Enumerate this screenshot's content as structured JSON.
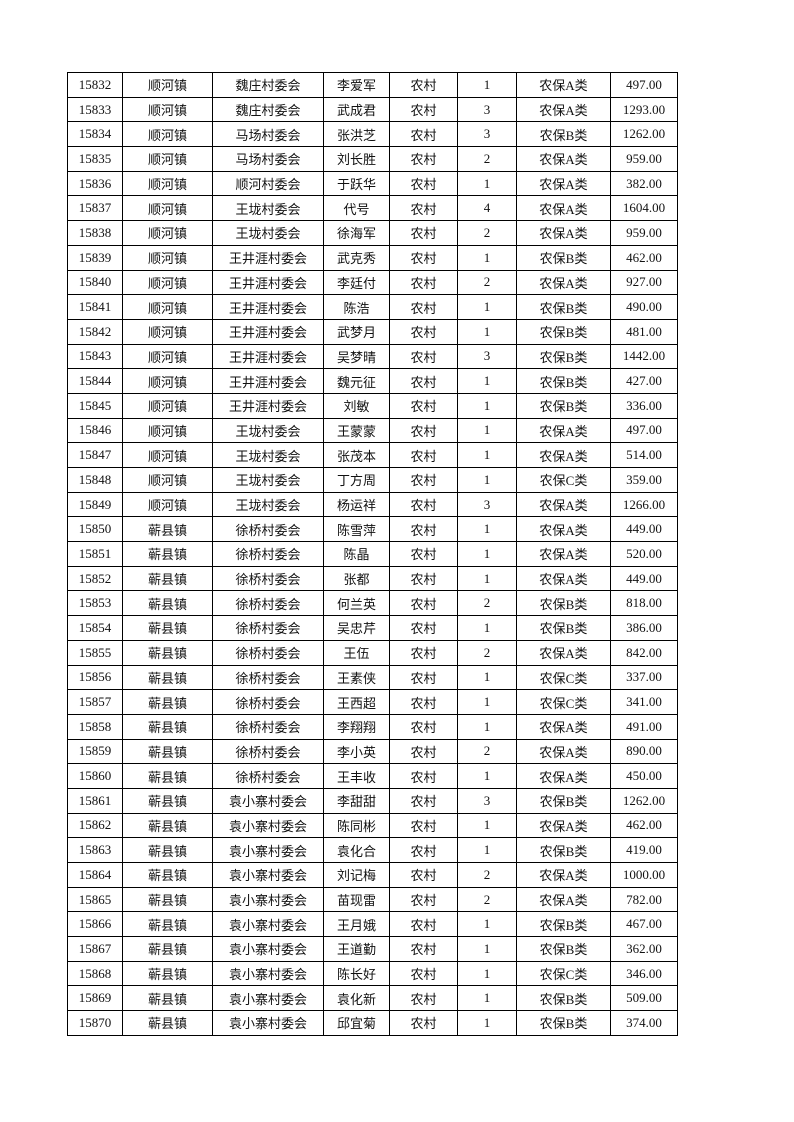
{
  "table": {
    "rows": [
      [
        "15832",
        "顺河镇",
        "魏庄村委会",
        "李爱军",
        "农村",
        "1",
        "农保A类",
        "497.00"
      ],
      [
        "15833",
        "顺河镇",
        "魏庄村委会",
        "武成君",
        "农村",
        "3",
        "农保A类",
        "1293.00"
      ],
      [
        "15834",
        "顺河镇",
        "马场村委会",
        "张洪芝",
        "农村",
        "3",
        "农保B类",
        "1262.00"
      ],
      [
        "15835",
        "顺河镇",
        "马场村委会",
        "刘长胜",
        "农村",
        "2",
        "农保A类",
        "959.00"
      ],
      [
        "15836",
        "顺河镇",
        "顺河村委会",
        "于跃华",
        "农村",
        "1",
        "农保A类",
        "382.00"
      ],
      [
        "15837",
        "顺河镇",
        "王垅村委会",
        "代号",
        "农村",
        "4",
        "农保A类",
        "1604.00"
      ],
      [
        "15838",
        "顺河镇",
        "王垅村委会",
        "徐海军",
        "农村",
        "2",
        "农保A类",
        "959.00"
      ],
      [
        "15839",
        "顺河镇",
        "王井涯村委会",
        "武克秀",
        "农村",
        "1",
        "农保B类",
        "462.00"
      ],
      [
        "15840",
        "顺河镇",
        "王井涯村委会",
        "李廷付",
        "农村",
        "2",
        "农保A类",
        "927.00"
      ],
      [
        "15841",
        "顺河镇",
        "王井涯村委会",
        "陈浩",
        "农村",
        "1",
        "农保B类",
        "490.00"
      ],
      [
        "15842",
        "顺河镇",
        "王井涯村委会",
        "武梦月",
        "农村",
        "1",
        "农保B类",
        "481.00"
      ],
      [
        "15843",
        "顺河镇",
        "王井涯村委会",
        "吴梦晴",
        "农村",
        "3",
        "农保B类",
        "1442.00"
      ],
      [
        "15844",
        "顺河镇",
        "王井涯村委会",
        "魏元征",
        "农村",
        "1",
        "农保B类",
        "427.00"
      ],
      [
        "15845",
        "顺河镇",
        "王井涯村委会",
        "刘敏",
        "农村",
        "1",
        "农保B类",
        "336.00"
      ],
      [
        "15846",
        "顺河镇",
        "王垅村委会",
        "王蒙蒙",
        "农村",
        "1",
        "农保A类",
        "497.00"
      ],
      [
        "15847",
        "顺河镇",
        "王垅村委会",
        "张茂本",
        "农村",
        "1",
        "农保A类",
        "514.00"
      ],
      [
        "15848",
        "顺河镇",
        "王垅村委会",
        "丁方周",
        "农村",
        "1",
        "农保C类",
        "359.00"
      ],
      [
        "15849",
        "顺河镇",
        "王垅村委会",
        "杨运祥",
        "农村",
        "3",
        "农保A类",
        "1266.00"
      ],
      [
        "15850",
        "蕲县镇",
        "徐桥村委会",
        "陈雪萍",
        "农村",
        "1",
        "农保A类",
        "449.00"
      ],
      [
        "15851",
        "蕲县镇",
        "徐桥村委会",
        "陈晶",
        "农村",
        "1",
        "农保A类",
        "520.00"
      ],
      [
        "15852",
        "蕲县镇",
        "徐桥村委会",
        "张都",
        "农村",
        "1",
        "农保A类",
        "449.00"
      ],
      [
        "15853",
        "蕲县镇",
        "徐桥村委会",
        "何兰英",
        "农村",
        "2",
        "农保B类",
        "818.00"
      ],
      [
        "15854",
        "蕲县镇",
        "徐桥村委会",
        "吴忠芹",
        "农村",
        "1",
        "农保B类",
        "386.00"
      ],
      [
        "15855",
        "蕲县镇",
        "徐桥村委会",
        "王伍",
        "农村",
        "2",
        "农保A类",
        "842.00"
      ],
      [
        "15856",
        "蕲县镇",
        "徐桥村委会",
        "王素侠",
        "农村",
        "1",
        "农保C类",
        "337.00"
      ],
      [
        "15857",
        "蕲县镇",
        "徐桥村委会",
        "王西超",
        "农村",
        "1",
        "农保C类",
        "341.00"
      ],
      [
        "15858",
        "蕲县镇",
        "徐桥村委会",
        "李翔翔",
        "农村",
        "1",
        "农保A类",
        "491.00"
      ],
      [
        "15859",
        "蕲县镇",
        "徐桥村委会",
        "李小英",
        "农村",
        "2",
        "农保A类",
        "890.00"
      ],
      [
        "15860",
        "蕲县镇",
        "徐桥村委会",
        "王丰收",
        "农村",
        "1",
        "农保A类",
        "450.00"
      ],
      [
        "15861",
        "蕲县镇",
        "袁小寨村委会",
        "李甜甜",
        "农村",
        "3",
        "农保B类",
        "1262.00"
      ],
      [
        "15862",
        "蕲县镇",
        "袁小寨村委会",
        "陈同彬",
        "农村",
        "1",
        "农保A类",
        "462.00"
      ],
      [
        "15863",
        "蕲县镇",
        "袁小寨村委会",
        "袁化合",
        "农村",
        "1",
        "农保B类",
        "419.00"
      ],
      [
        "15864",
        "蕲县镇",
        "袁小寨村委会",
        "刘记梅",
        "农村",
        "2",
        "农保A类",
        "1000.00"
      ],
      [
        "15865",
        "蕲县镇",
        "袁小寨村委会",
        "苗现雷",
        "农村",
        "2",
        "农保A类",
        "782.00"
      ],
      [
        "15866",
        "蕲县镇",
        "袁小寨村委会",
        "王月娥",
        "农村",
        "1",
        "农保B类",
        "467.00"
      ],
      [
        "15867",
        "蕲县镇",
        "袁小寨村委会",
        "王道勤",
        "农村",
        "1",
        "农保B类",
        "362.00"
      ],
      [
        "15868",
        "蕲县镇",
        "袁小寨村委会",
        "陈长好",
        "农村",
        "1",
        "农保C类",
        "346.00"
      ],
      [
        "15869",
        "蕲县镇",
        "袁小寨村委会",
        "袁化新",
        "农村",
        "1",
        "农保B类",
        "509.00"
      ],
      [
        "15870",
        "蕲县镇",
        "袁小寨村委会",
        "邱宜菊",
        "农村",
        "1",
        "农保B类",
        "374.00"
      ]
    ]
  }
}
